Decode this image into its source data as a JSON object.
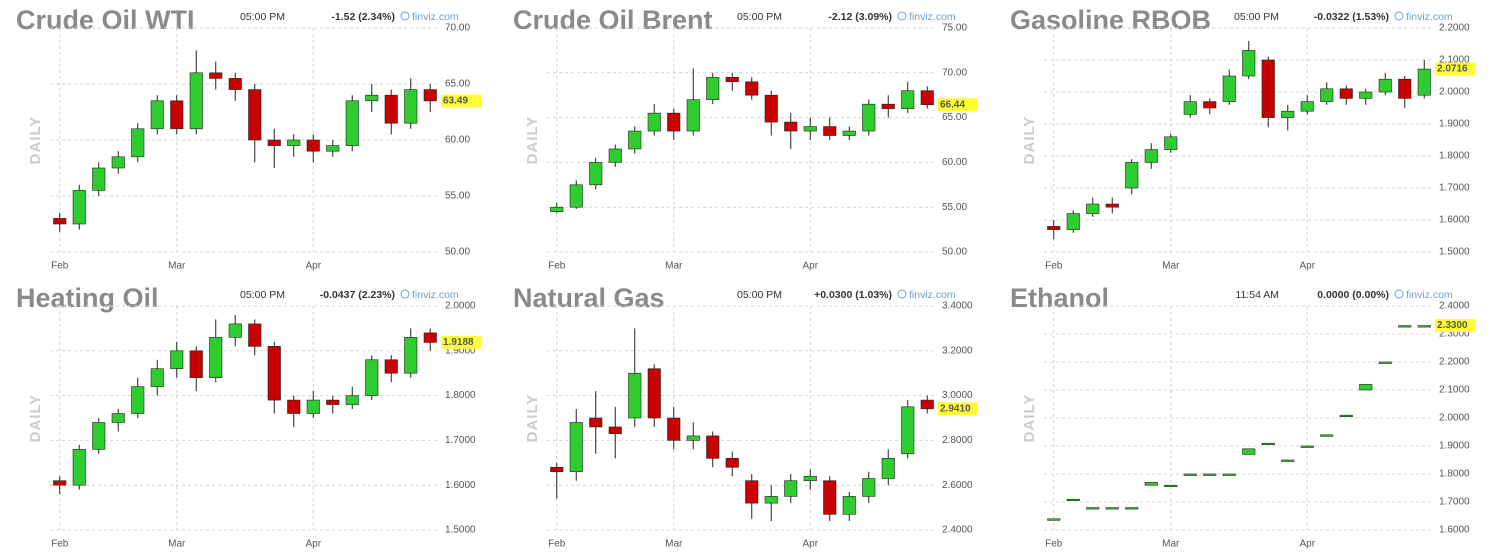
{
  "chart_data": [
    {
      "type": "candlestick",
      "title": "Crude Oil WTI",
      "time": "05:00 PM",
      "change": "-1.52 (2.34%)",
      "change_color": "#d01010",
      "source": "finviz.com",
      "timeframe": "DAILY",
      "categories": [
        "Feb",
        null,
        null,
        null,
        null,
        null,
        "Mar",
        null,
        null,
        null,
        null,
        null,
        null,
        "Apr",
        null,
        null,
        null,
        null,
        null,
        null
      ],
      "open": [
        53,
        52.5,
        55.5,
        57.5,
        58.5,
        61,
        63.5,
        61,
        66,
        65.5,
        64.5,
        60,
        59.5,
        60,
        59,
        59.5,
        63.5,
        64,
        61.5,
        64.5
      ],
      "high": [
        53.5,
        56,
        58,
        59,
        61.5,
        64,
        64,
        68,
        67,
        66,
        65,
        61,
        60.5,
        60.5,
        60,
        64,
        65,
        64.5,
        65.5,
        65
      ],
      "low": [
        51.8,
        52,
        55,
        57,
        58,
        60.5,
        60.5,
        60.5,
        64.5,
        63.5,
        58,
        57.5,
        58.5,
        58,
        58.5,
        59,
        62.5,
        60.5,
        61,
        62.5
      ],
      "close": [
        52.5,
        55.5,
        57.5,
        58.5,
        61,
        63.5,
        61,
        66,
        65.5,
        64.5,
        60,
        59.5,
        60,
        59,
        59.5,
        63.5,
        64,
        61.5,
        64.5,
        63.49
      ],
      "last": 63.49,
      "up_color": "#2ecc2e",
      "down_color": "#c80000",
      "ylim": [
        50,
        70
      ],
      "yticks": [
        {
          "value": 50,
          "label": "50.00"
        },
        {
          "value": 55,
          "label": "55.00"
        },
        {
          "value": 60,
          "label": "60.00"
        },
        {
          "value": 65,
          "label": "65.00"
        },
        {
          "value": 70,
          "label": "70.00"
        }
      ],
      "grid": true
    },
    {
      "type": "candlestick",
      "title": "Crude Oil Brent",
      "time": "05:00 PM",
      "change": "-2.12 (3.09%)",
      "change_color": "#d01010",
      "source": "finviz.com",
      "timeframe": "DAILY",
      "categories": [
        "Feb",
        null,
        null,
        null,
        null,
        null,
        "Mar",
        null,
        null,
        null,
        null,
        null,
        null,
        "Apr",
        null,
        null,
        null,
        null,
        null,
        null
      ],
      "open": [
        54.5,
        55,
        57.5,
        60,
        61.5,
        63.5,
        65.5,
        63.5,
        67,
        69.5,
        69,
        67.5,
        64.5,
        63.5,
        64,
        63,
        63.5,
        66.5,
        66,
        68
      ],
      "high": [
        55.5,
        58,
        60.5,
        62,
        64,
        66.5,
        66,
        70.5,
        70,
        70,
        69.5,
        68,
        65.5,
        65,
        65,
        64,
        67,
        67.5,
        69,
        68.5
      ],
      "low": [
        54.3,
        54.8,
        57,
        59.5,
        61,
        63,
        62.5,
        63,
        66.5,
        68,
        67,
        63,
        61.5,
        62.5,
        62.5,
        62.5,
        63,
        65,
        65.5,
        66
      ],
      "close": [
        55,
        57.5,
        60,
        61.5,
        63.5,
        65.5,
        63.5,
        67,
        69.5,
        69,
        67.5,
        64.5,
        63.5,
        64,
        63,
        63.5,
        66.5,
        66,
        68,
        66.44
      ],
      "last": 66.44,
      "up_color": "#2ecc2e",
      "down_color": "#c80000",
      "ylim": [
        50,
        75
      ],
      "yticks": [
        {
          "value": 50,
          "label": "50.00"
        },
        {
          "value": 55,
          "label": "55.00"
        },
        {
          "value": 60,
          "label": "60.00"
        },
        {
          "value": 65,
          "label": "65.00"
        },
        {
          "value": 70,
          "label": "70.00"
        },
        {
          "value": 75,
          "label": "75.00"
        }
      ],
      "grid": true
    },
    {
      "type": "candlestick",
      "title": "Gasoline RBOB",
      "time": "05:00 PM",
      "change": "-0.0322 (1.53%)",
      "change_color": "#d01010",
      "source": "finviz.com",
      "timeframe": "DAILY",
      "categories": [
        "Feb",
        null,
        null,
        null,
        null,
        null,
        "Mar",
        null,
        null,
        null,
        null,
        null,
        null,
        "Apr",
        null,
        null,
        null,
        null,
        null,
        null
      ],
      "open": [
        1.58,
        1.57,
        1.62,
        1.65,
        1.7,
        1.78,
        1.82,
        1.93,
        1.97,
        1.97,
        2.05,
        2.1,
        1.92,
        1.94,
        1.97,
        2.01,
        1.98,
        2.0,
        2.04,
        1.99
      ],
      "high": [
        1.6,
        1.63,
        1.67,
        1.67,
        1.79,
        1.84,
        1.87,
        1.99,
        1.98,
        2.07,
        2.16,
        2.11,
        1.96,
        1.99,
        2.03,
        2.02,
        2.01,
        2.06,
        2.05,
        2.1
      ],
      "low": [
        1.54,
        1.56,
        1.61,
        1.62,
        1.68,
        1.76,
        1.81,
        1.92,
        1.93,
        1.96,
        2.04,
        1.89,
        1.88,
        1.93,
        1.96,
        1.96,
        1.96,
        1.99,
        1.95,
        1.98
      ],
      "close": [
        1.57,
        1.62,
        1.65,
        1.64,
        1.78,
        1.82,
        1.86,
        1.97,
        1.95,
        2.05,
        2.13,
        1.92,
        1.94,
        1.97,
        2.01,
        1.98,
        2.0,
        2.04,
        1.98,
        2.0716
      ],
      "last": 2.0716,
      "up_color": "#2ecc2e",
      "down_color": "#c80000",
      "ylim": [
        1.5,
        2.2
      ],
      "yticks": [
        {
          "value": 1.5,
          "label": "1.5000"
        },
        {
          "value": 1.6,
          "label": "1.6000"
        },
        {
          "value": 1.7,
          "label": "1.7000"
        },
        {
          "value": 1.8,
          "label": "1.8000"
        },
        {
          "value": 1.9,
          "label": "1.9000"
        },
        {
          "value": 2.0,
          "label": "2.0000"
        },
        {
          "value": 2.1,
          "label": "2.1000"
        },
        {
          "value": 2.2,
          "label": "2.2000"
        }
      ],
      "grid": true
    },
    {
      "type": "candlestick",
      "title": "Heating Oil",
      "time": "05:00 PM",
      "change": "-0.0437 (2.23%)",
      "change_color": "#d01010",
      "source": "finviz.com",
      "timeframe": "DAILY",
      "categories": [
        "Feb",
        null,
        null,
        null,
        null,
        null,
        "Mar",
        null,
        null,
        null,
        null,
        null,
        null,
        "Apr",
        null,
        null,
        null,
        null,
        null,
        null
      ],
      "open": [
        1.61,
        1.6,
        1.68,
        1.74,
        1.76,
        1.82,
        1.86,
        1.9,
        1.84,
        1.93,
        1.96,
        1.91,
        1.79,
        1.76,
        1.79,
        1.78,
        1.8,
        1.88,
        1.85,
        1.94
      ],
      "high": [
        1.62,
        1.69,
        1.75,
        1.77,
        1.84,
        1.88,
        1.92,
        1.91,
        1.97,
        1.98,
        1.97,
        1.92,
        1.8,
        1.81,
        1.8,
        1.82,
        1.89,
        1.89,
        1.95,
        1.95
      ],
      "low": [
        1.58,
        1.59,
        1.67,
        1.72,
        1.75,
        1.8,
        1.84,
        1.81,
        1.83,
        1.91,
        1.89,
        1.76,
        1.73,
        1.75,
        1.76,
        1.77,
        1.79,
        1.83,
        1.84,
        1.9
      ],
      "close": [
        1.6,
        1.68,
        1.74,
        1.76,
        1.82,
        1.86,
        1.9,
        1.84,
        1.93,
        1.96,
        1.91,
        1.79,
        1.76,
        1.79,
        1.78,
        1.8,
        1.88,
        1.85,
        1.93,
        1.9188
      ],
      "last": 1.9188,
      "up_color": "#2ecc2e",
      "down_color": "#c80000",
      "ylim": [
        1.5,
        2.0
      ],
      "yticks": [
        {
          "value": 1.5,
          "label": "1.5000"
        },
        {
          "value": 1.6,
          "label": "1.6000"
        },
        {
          "value": 1.7,
          "label": "1.7000"
        },
        {
          "value": 1.8,
          "label": "1.8000"
        },
        {
          "value": 1.9,
          "label": "1.9000"
        },
        {
          "value": 2.0,
          "label": "2.0000"
        }
      ],
      "grid": true
    },
    {
      "type": "candlestick",
      "title": "Natural Gas",
      "time": "05:00 PM",
      "change": "+0.0300 (1.03%)",
      "change_color": "#109010",
      "source": "finviz.com",
      "timeframe": "DAILY",
      "categories": [
        "Feb",
        null,
        null,
        null,
        null,
        null,
        "Mar",
        null,
        null,
        null,
        null,
        null,
        null,
        "Apr",
        null,
        null,
        null,
        null,
        null,
        null
      ],
      "open": [
        2.68,
        2.66,
        2.9,
        2.86,
        2.9,
        3.12,
        2.9,
        2.8,
        2.82,
        2.72,
        2.62,
        2.52,
        2.55,
        2.62,
        2.62,
        2.47,
        2.55,
        2.63,
        2.74,
        2.98
      ],
      "high": [
        2.7,
        2.94,
        3.02,
        2.95,
        3.3,
        3.14,
        2.95,
        2.88,
        2.84,
        2.75,
        2.65,
        2.6,
        2.65,
        2.67,
        2.64,
        2.57,
        2.66,
        2.76,
        2.98,
        3.0
      ],
      "low": [
        2.54,
        2.62,
        2.74,
        2.72,
        2.86,
        2.86,
        2.76,
        2.76,
        2.68,
        2.64,
        2.45,
        2.44,
        2.52,
        2.58,
        2.44,
        2.44,
        2.52,
        2.6,
        2.72,
        2.92
      ],
      "close": [
        2.66,
        2.88,
        2.86,
        2.83,
        3.1,
        2.9,
        2.8,
        2.82,
        2.72,
        2.68,
        2.52,
        2.55,
        2.62,
        2.64,
        2.47,
        2.55,
        2.63,
        2.72,
        2.95,
        2.941
      ],
      "last": {
        "value": 2.941,
        "label": "2.9410"
      },
      "up_color": "#2ecc2e",
      "down_color": "#c80000",
      "ylim": [
        2.4,
        3.4
      ],
      "yticks": [
        {
          "value": 2.4,
          "label": "2.4000"
        },
        {
          "value": 2.6,
          "label": "2.6000"
        },
        {
          "value": 2.8,
          "label": "2.8000"
        },
        {
          "value": 3.0,
          "label": "3.0000"
        },
        {
          "value": 3.2,
          "label": "3.2000"
        },
        {
          "value": 3.4,
          "label": "3.4000"
        }
      ],
      "grid": true
    },
    {
      "type": "candlestick",
      "title": "Ethanol",
      "time": "11:54 AM",
      "change": "0.0000 (0.00%)",
      "change_color": "#111111",
      "source": "finviz.com",
      "timeframe": "DAILY",
      "categories": [
        "Feb",
        null,
        null,
        null,
        null,
        null,
        "Mar",
        null,
        null,
        null,
        null,
        null,
        null,
        "Apr",
        null,
        null,
        null,
        null,
        null,
        null
      ],
      "open": [
        1.64,
        1.71,
        1.68,
        1.68,
        1.68,
        1.76,
        1.76,
        1.8,
        1.8,
        1.8,
        1.87,
        1.91,
        1.85,
        1.9,
        1.94,
        2.01,
        2.1,
        2.2,
        2.33,
        2.33
      ],
      "high": [
        1.64,
        1.71,
        1.68,
        1.68,
        1.68,
        1.77,
        1.76,
        1.8,
        1.8,
        1.8,
        1.89,
        1.91,
        1.85,
        1.9,
        1.94,
        2.01,
        2.12,
        2.2,
        2.33,
        2.33
      ],
      "low": [
        1.64,
        1.71,
        1.68,
        1.68,
        1.68,
        1.76,
        1.76,
        1.8,
        1.8,
        1.8,
        1.87,
        1.91,
        1.85,
        1.9,
        1.94,
        2.01,
        2.1,
        2.2,
        2.33,
        2.33
      ],
      "close": [
        1.64,
        1.71,
        1.68,
        1.68,
        1.68,
        1.77,
        1.76,
        1.8,
        1.8,
        1.8,
        1.89,
        1.91,
        1.85,
        1.9,
        1.94,
        2.01,
        2.12,
        2.2,
        2.33,
        2.33
      ],
      "last": {
        "value": 2.33,
        "label": "2.3300"
      },
      "up_color": "#2ecc2e",
      "down_color": "#0b4d0b",
      "ylim": [
        1.6,
        2.4
      ],
      "yticks": [
        {
          "value": 1.6,
          "label": "1.6000"
        },
        {
          "value": 1.7,
          "label": "1.7000"
        },
        {
          "value": 1.8,
          "label": "1.8000"
        },
        {
          "value": 1.9,
          "label": "1.9000"
        },
        {
          "value": 2.0,
          "label": "2.0000"
        },
        {
          "value": 2.1,
          "label": "2.1000"
        },
        {
          "value": 2.2,
          "label": "2.2000"
        },
        {
          "value": 2.3,
          "label": "2.3000"
        },
        {
          "value": 2.4,
          "label": "2.4000"
        }
      ],
      "grid": true
    }
  ]
}
